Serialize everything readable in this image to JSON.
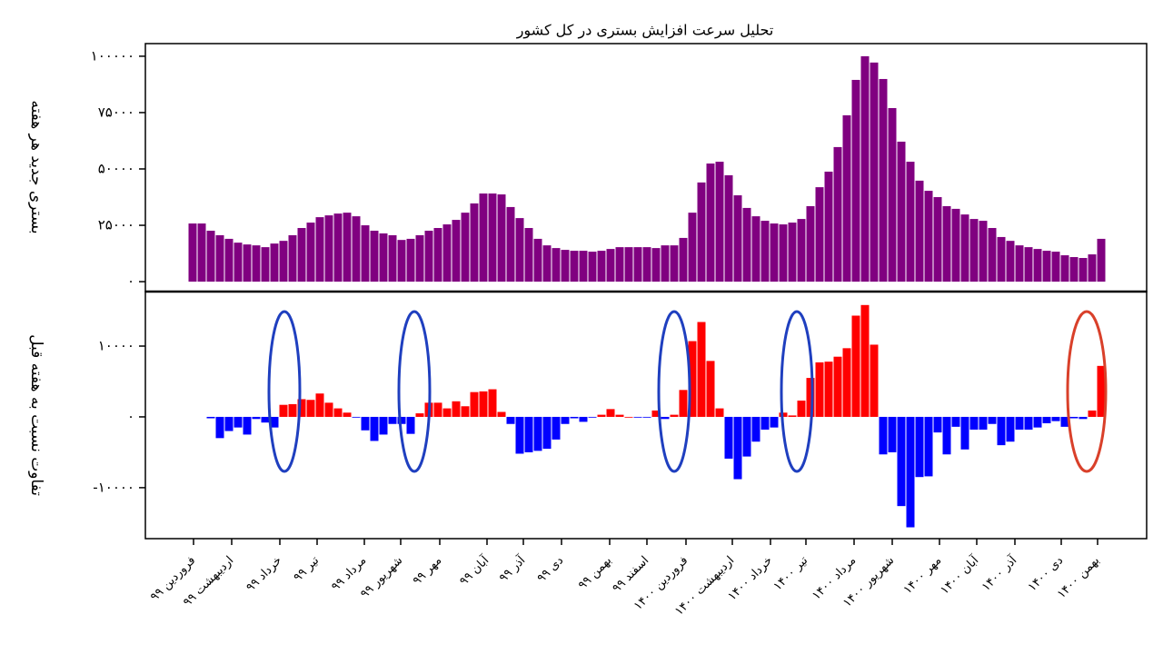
{
  "chart_data": [
    {
      "type": "bar",
      "title": "تحلیل سرعت افزایش بستری در کل کشور",
      "y_label": "بستری جدید هر هفته",
      "color": "#800080",
      "x": [
        0,
        1,
        2,
        3,
        4,
        5,
        6,
        7,
        8,
        9,
        10,
        11,
        12,
        13,
        14,
        15,
        16,
        17,
        18,
        19,
        20,
        21,
        22,
        23,
        24,
        25,
        26,
        27,
        28,
        29,
        30,
        31,
        32,
        33,
        34,
        35,
        36,
        37,
        38,
        39,
        40,
        41,
        42,
        43,
        44,
        45,
        46,
        47,
        48,
        49,
        50,
        51,
        52,
        53,
        54,
        55,
        56,
        57,
        58,
        59,
        60,
        61,
        62,
        63,
        64,
        65,
        66,
        67,
        68,
        69,
        70,
        71,
        72,
        73,
        74,
        75,
        76,
        77,
        78,
        79,
        80,
        81,
        82,
        83,
        84,
        85,
        86,
        87,
        88,
        89,
        90,
        91,
        92,
        93,
        94,
        95,
        96,
        97,
        98,
        99,
        100
      ],
      "values": [
        25800,
        25800,
        22600,
        20600,
        19000,
        17300,
        16500,
        16100,
        15300,
        16900,
        18100,
        20600,
        23800,
        26200,
        28600,
        29400,
        30200,
        30600,
        29000,
        25000,
        22600,
        21400,
        20600,
        18500,
        19000,
        20600,
        22600,
        23800,
        25400,
        27400,
        30600,
        34700,
        39100,
        39100,
        38700,
        33100,
        28200,
        23800,
        19000,
        16100,
        14900,
        14100,
        13700,
        13700,
        13300,
        13700,
        14500,
        15300,
        15300,
        15300,
        15300,
        14900,
        16100,
        16100,
        19400,
        30600,
        44000,
        52400,
        53200,
        47200,
        38300,
        32700,
        29000,
        27000,
        25800,
        25400,
        26200,
        27800,
        33500,
        41900,
        48800,
        59700,
        73800,
        89500,
        100000,
        97200,
        89900,
        77000,
        62100,
        53200,
        44800,
        40300,
        37500,
        33500,
        32300,
        29800,
        27800,
        27000,
        23800,
        19800,
        18100,
        16100,
        15300,
        14500,
        13700,
        13300,
        11700,
        10900,
        10500,
        12100,
        19000
      ],
      "xlim": [
        -5.2,
        105
      ],
      "ylim": [
        -4400,
        105600
      ],
      "yticks": [
        {
          "value": 0,
          "label": "۰"
        },
        {
          "value": 25000,
          "label": "۲۵۰۰۰"
        },
        {
          "value": 50000,
          "label": "۵۰۰۰۰"
        },
        {
          "value": 75000,
          "label": "۷۵۰۰۰"
        },
        {
          "value": 100000,
          "label": "۱۰۰۰۰۰"
        }
      ]
    },
    {
      "type": "diverging-bar",
      "y_label": "تفاوت نسبت به هفته قبل",
      "color_positive": "#ff0000",
      "color_negative": "#0000ff",
      "x": [
        2,
        3,
        4,
        5,
        6,
        7,
        8,
        9,
        10,
        11,
        12,
        13,
        14,
        15,
        16,
        17,
        18,
        19,
        20,
        21,
        22,
        23,
        24,
        25,
        26,
        27,
        28,
        29,
        30,
        31,
        32,
        33,
        34,
        35,
        36,
        37,
        38,
        39,
        40,
        41,
        42,
        43,
        44,
        45,
        46,
        47,
        48,
        49,
        50,
        51,
        52,
        53,
        54,
        55,
        56,
        57,
        58,
        59,
        60,
        61,
        62,
        63,
        64,
        65,
        66,
        67,
        68,
        69,
        70,
        71,
        72,
        73,
        74,
        75,
        76,
        77,
        78,
        79,
        80,
        81,
        82,
        83,
        84,
        85,
        86,
        87,
        88,
        89,
        90,
        91,
        92,
        93,
        94,
        95,
        96,
        97,
        98,
        99,
        100
      ],
      "values": [
        -200,
        -3000,
        -2000,
        -1500,
        -2500,
        -300,
        -800,
        -1500,
        1700,
        1800,
        2500,
        2400,
        3300,
        2000,
        1200,
        600,
        -100,
        -1900,
        -3400,
        -2500,
        -1000,
        -1000,
        -2400,
        500,
        2000,
        2000,
        1200,
        2200,
        1500,
        3500,
        3600,
        3900,
        700,
        -1000,
        -5200,
        -5000,
        -4800,
        -4500,
        -3200,
        -1000,
        -200,
        -700,
        -100,
        300,
        1100,
        300,
        0,
        -100,
        -100,
        900,
        -300,
        300,
        3800,
        10700,
        13400,
        7900,
        1200,
        -5900,
        -8800,
        -5600,
        -3500,
        -1800,
        -1500,
        600,
        200,
        2300,
        5500,
        7700,
        7800,
        8500,
        9700,
        14300,
        15800,
        10200,
        -5300,
        -5000,
        -12600,
        -15600,
        -8500,
        -8400,
        -2200,
        -5300,
        -1400,
        -4600,
        -1800,
        -1800,
        -1000,
        -4000,
        -3500,
        -1800,
        -1800,
        -1500,
        -900,
        -600,
        -1400,
        -200,
        -300,
        900,
        7200
      ],
      "xlim": [
        -5.2,
        105
      ],
      "ylim": [
        -17200,
        17700
      ],
      "yticks": [
        {
          "value": -10000,
          "label": "-۱۰۰۰۰"
        },
        {
          "value": 0,
          "label": "۰"
        },
        {
          "value": 10000,
          "label": "۱۰۰۰۰"
        }
      ],
      "xticks": [
        {
          "value": 0.1,
          "label": "فروردین ۹۹"
        },
        {
          "value": 4.3,
          "label": "اردیبهشت ۹۹"
        },
        {
          "value": 9.6,
          "label": "خرداد ۹۹"
        },
        {
          "value": 13.7,
          "label": "تیر ۹۹"
        },
        {
          "value": 18.9,
          "label": "مرداد ۹۹"
        },
        {
          "value": 22.9,
          "label": "شهریور ۹۹"
        },
        {
          "value": 27.2,
          "label": "مهر ۹۹"
        },
        {
          "value": 32.4,
          "label": "آبان ۹۹"
        },
        {
          "value": 36.4,
          "label": "آذر ۹۹"
        },
        {
          "value": 40.6,
          "label": "دی ۹۹"
        },
        {
          "value": 45.9,
          "label": "بهمن ۹۹"
        },
        {
          "value": 50,
          "label": "اسفند ۹۹"
        },
        {
          "value": 54.3,
          "label": "فروردین ۱۴۰۰"
        },
        {
          "value": 59.4,
          "label": "اردیبهشت ۱۴۰۰"
        },
        {
          "value": 63.6,
          "label": "خرداد ۱۴۰۰"
        },
        {
          "value": 67.5,
          "label": "تیر ۱۴۰۰"
        },
        {
          "value": 72.8,
          "label": "مرداد ۱۴۰۰"
        },
        {
          "value": 77,
          "label": "شهریور ۱۴۰۰"
        },
        {
          "value": 82.2,
          "label": "مهر ۱۴۰۰"
        },
        {
          "value": 86.3,
          "label": "آبان ۱۴۰۰"
        },
        {
          "value": 90.5,
          "label": "آذر ۱۴۰۰"
        },
        {
          "value": 95.6,
          "label": "دی ۱۴۰۰"
        },
        {
          "value": 99.6,
          "label": "بهمن ۱۴۰۰"
        }
      ]
    }
  ]
}
